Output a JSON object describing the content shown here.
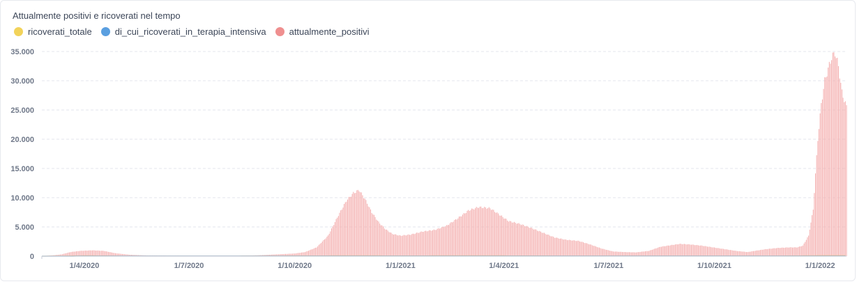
{
  "chart_data": {
    "type": "bar",
    "title": "Attualmente positivi e ricoverati nel tempo",
    "series": [
      {
        "name": "ricoverati_totale",
        "color": "#f2d35a"
      },
      {
        "name": "di_cui_ricoverati_in_terapia_intensiva",
        "color": "#5a9fe0"
      },
      {
        "name": "attualmente_positivi",
        "color": "#ef8f8f"
      }
    ],
    "x_range": [
      "2020-02-24",
      "2022-01-24"
    ],
    "x_ticks": [
      {
        "date": "2020-04-01",
        "label": "1/4/2020"
      },
      {
        "date": "2020-07-01",
        "label": "1/7/2020"
      },
      {
        "date": "2020-10-01",
        "label": "1/10/2020"
      },
      {
        "date": "2021-01-01",
        "label": "1/1/2021"
      },
      {
        "date": "2021-04-01",
        "label": "1/4/2021"
      },
      {
        "date": "2021-07-01",
        "label": "1/7/2021"
      },
      {
        "date": "2021-10-01",
        "label": "1/10/2021"
      },
      {
        "date": "2022-01-01",
        "label": "1/1/2022"
      }
    ],
    "y_ticks": [
      {
        "value": 0,
        "label": "0"
      },
      {
        "value": 5000,
        "label": "5.000"
      },
      {
        "value": 10000,
        "label": "10.000"
      },
      {
        "value": 15000,
        "label": "15.000"
      },
      {
        "value": 20000,
        "label": "20.000"
      },
      {
        "value": 25000,
        "label": "25.000"
      },
      {
        "value": 30000,
        "label": "30.000"
      },
      {
        "value": 35000,
        "label": "35.000"
      }
    ],
    "ylim": [
      0,
      35000
    ],
    "grid": true,
    "legend_position": "top-left",
    "attualmente_positivi_points": [
      [
        "2020-02-24",
        0
      ],
      [
        "2020-03-05",
        150
      ],
      [
        "2020-03-12",
        300
      ],
      [
        "2020-03-20",
        700
      ],
      [
        "2020-03-28",
        900
      ],
      [
        "2020-04-08",
        1000
      ],
      [
        "2020-04-18",
        900
      ],
      [
        "2020-04-28",
        500
      ],
      [
        "2020-05-10",
        250
      ],
      [
        "2020-05-25",
        120
      ],
      [
        "2020-06-15",
        80
      ],
      [
        "2020-07-15",
        50
      ],
      [
        "2020-08-15",
        60
      ],
      [
        "2020-08-30",
        150
      ],
      [
        "2020-09-15",
        300
      ],
      [
        "2020-10-01",
        450
      ],
      [
        "2020-10-10",
        700
      ],
      [
        "2020-10-20",
        1500
      ],
      [
        "2020-10-30",
        3500
      ],
      [
        "2020-11-08",
        7000
      ],
      [
        "2020-11-15",
        9500
      ],
      [
        "2020-11-21",
        10800
      ],
      [
        "2020-11-26",
        11300
      ],
      [
        "2020-12-01",
        9800
      ],
      [
        "2020-12-07",
        7500
      ],
      [
        "2020-12-13",
        5800
      ],
      [
        "2020-12-19",
        4600
      ],
      [
        "2020-12-25",
        3800
      ],
      [
        "2021-01-01",
        3500
      ],
      [
        "2021-01-10",
        3700
      ],
      [
        "2021-01-20",
        4200
      ],
      [
        "2021-01-31",
        4500
      ],
      [
        "2021-02-10",
        5200
      ],
      [
        "2021-02-20",
        6500
      ],
      [
        "2021-03-01",
        7800
      ],
      [
        "2021-03-10",
        8400
      ],
      [
        "2021-03-20",
        8200
      ],
      [
        "2021-03-28",
        7100
      ],
      [
        "2021-04-05",
        6000
      ],
      [
        "2021-04-15",
        5500
      ],
      [
        "2021-04-25",
        4800
      ],
      [
        "2021-05-05",
        4000
      ],
      [
        "2021-05-15",
        3200
      ],
      [
        "2021-05-25",
        2800
      ],
      [
        "2021-06-05",
        2600
      ],
      [
        "2021-06-15",
        2000
      ],
      [
        "2021-06-25",
        1300
      ],
      [
        "2021-07-05",
        800
      ],
      [
        "2021-07-15",
        700
      ],
      [
        "2021-07-25",
        650
      ],
      [
        "2021-08-05",
        900
      ],
      [
        "2021-08-15",
        1600
      ],
      [
        "2021-08-25",
        1900
      ],
      [
        "2021-09-01",
        2100
      ],
      [
        "2021-09-10",
        2000
      ],
      [
        "2021-09-20",
        1800
      ],
      [
        "2021-09-30",
        1500
      ],
      [
        "2021-10-10",
        1200
      ],
      [
        "2021-10-20",
        900
      ],
      [
        "2021-10-30",
        700
      ],
      [
        "2021-11-05",
        900
      ],
      [
        "2021-11-15",
        1200
      ],
      [
        "2021-11-25",
        1400
      ],
      [
        "2021-12-05",
        1500
      ],
      [
        "2021-12-12",
        1500
      ],
      [
        "2021-12-17",
        1800
      ],
      [
        "2021-12-22",
        3500
      ],
      [
        "2021-12-26",
        8000
      ],
      [
        "2021-12-30",
        20000
      ],
      [
        "2022-01-02",
        26000
      ],
      [
        "2022-01-05",
        30000
      ],
      [
        "2022-01-08",
        32000
      ],
      [
        "2022-01-11",
        34000
      ],
      [
        "2022-01-14",
        34800
      ],
      [
        "2022-01-17",
        32500
      ],
      [
        "2022-01-20",
        28000
      ],
      [
        "2022-01-24",
        25500
      ]
    ],
    "ricoverati_totale_points": [
      [
        "2020-02-24",
        0
      ],
      [
        "2020-03-20",
        40
      ],
      [
        "2020-04-05",
        60
      ],
      [
        "2020-05-10",
        20
      ],
      [
        "2020-07-15",
        20
      ],
      [
        "2020-11-20",
        60
      ],
      [
        "2021-01-01",
        50
      ],
      [
        "2021-03-15",
        60
      ],
      [
        "2021-06-15",
        30
      ],
      [
        "2021-09-01",
        30
      ],
      [
        "2021-12-01",
        40
      ],
      [
        "2022-01-15",
        80
      ],
      [
        "2022-01-24",
        70
      ]
    ],
    "terapia_intensiva_points": [
      [
        "2020-02-24",
        0
      ],
      [
        "2020-04-01",
        8
      ],
      [
        "2020-11-20",
        10
      ],
      [
        "2021-03-15",
        10
      ],
      [
        "2022-01-15",
        12
      ],
      [
        "2022-01-24",
        10
      ]
    ]
  }
}
